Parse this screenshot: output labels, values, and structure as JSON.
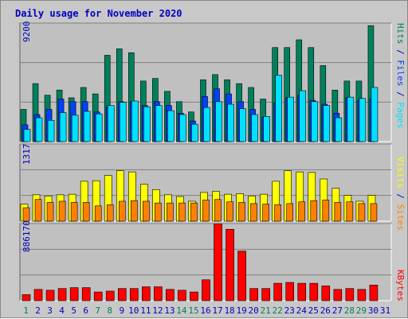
{
  "title": "Daily usage for November 2020",
  "colors": {
    "title": "#0000c0",
    "frame_bg": "#c8c8c8",
    "panel_bg": "#c0c0c0",
    "grid": "#808080",
    "hits": "#00805c",
    "files": "#0040ff",
    "pages": "#00e0ff",
    "visits": "#ffff00",
    "sites": "#ff8000",
    "kbytes": "#ff0000",
    "weekend_label": "#00805c",
    "weekday_label": "#0000c0"
  },
  "right_labels": {
    "pages": "Pages",
    "files": "Files",
    "hits": "Hits",
    "sep": " / ",
    "sites": "Sites",
    "visits": "Visits",
    "kbytes": "KBytes"
  },
  "chart_data": [
    {
      "type": "bar",
      "panel": "hits-files-pages",
      "ymax_label": "9200",
      "ylim": [
        0,
        9200
      ],
      "categories": [
        "1",
        "2",
        "3",
        "4",
        "5",
        "6",
        "7",
        "8",
        "9",
        "10",
        "11",
        "12",
        "13",
        "14",
        "15",
        "16",
        "17",
        "18",
        "19",
        "20",
        "21",
        "22",
        "23",
        "24",
        "25",
        "26",
        "27",
        "28",
        "29",
        "30",
        "31"
      ],
      "weekend_days": [
        "1",
        "7",
        "8",
        "14",
        "15",
        "21",
        "22",
        "28",
        "29"
      ],
      "series": [
        {
          "name": "Hits",
          "values": [
            2500,
            4500,
            3600,
            4000,
            3400,
            4200,
            3700,
            6700,
            7200,
            6900,
            4700,
            4900,
            3900,
            3100,
            2300,
            4800,
            5200,
            4800,
            4500,
            4200,
            3300,
            7300,
            7300,
            7900,
            7300,
            5900,
            4000,
            4700,
            4700,
            9000,
            null
          ]
        },
        {
          "name": "Files",
          "values": [
            1300,
            2100,
            2500,
            3300,
            3100,
            3100,
            2300,
            2700,
            3100,
            3100,
            2800,
            3100,
            2800,
            2200,
            1600,
            3500,
            4100,
            3700,
            3100,
            2500,
            1900,
            3000,
            3400,
            3600,
            3200,
            2900,
            2200,
            3400,
            3200,
            3300,
            null
          ]
        },
        {
          "name": "Pages",
          "values": [
            950,
            1850,
            1650,
            2250,
            2050,
            2350,
            2150,
            2800,
            3050,
            3150,
            2700,
            2800,
            2400,
            2100,
            1350,
            2650,
            3100,
            2900,
            2550,
            2100,
            1950,
            5150,
            3450,
            3950,
            3100,
            2800,
            1850,
            3450,
            3350,
            4200,
            null
          ]
        }
      ]
    },
    {
      "type": "bar",
      "panel": "visits-sites",
      "ymax_label": "1317",
      "ylim": [
        0,
        1317
      ],
      "categories": [
        "1",
        "2",
        "3",
        "4",
        "5",
        "6",
        "7",
        "8",
        "9",
        "10",
        "11",
        "12",
        "13",
        "14",
        "15",
        "16",
        "17",
        "18",
        "19",
        "20",
        "21",
        "22",
        "23",
        "24",
        "25",
        "26",
        "27",
        "28",
        "29",
        "30",
        "31"
      ],
      "series": [
        {
          "name": "Visits",
          "values": [
            290,
            450,
            430,
            450,
            460,
            680,
            690,
            780,
            860,
            840,
            630,
            540,
            450,
            420,
            340,
            490,
            510,
            460,
            470,
            430,
            460,
            680,
            860,
            840,
            830,
            720,
            560,
            440,
            340,
            440,
            null
          ]
        },
        {
          "name": "Sites",
          "values": [
            230,
            370,
            320,
            340,
            320,
            320,
            260,
            280,
            340,
            350,
            340,
            310,
            310,
            310,
            310,
            360,
            370,
            330,
            320,
            300,
            290,
            280,
            300,
            330,
            350,
            360,
            320,
            330,
            300,
            300,
            null
          ]
        }
      ]
    },
    {
      "type": "bar",
      "panel": "kbytes",
      "ymax_label": "886170",
      "ylim": [
        0,
        886170
      ],
      "categories": [
        "1",
        "2",
        "3",
        "4",
        "5",
        "6",
        "7",
        "8",
        "9",
        "10",
        "11",
        "12",
        "13",
        "14",
        "15",
        "16",
        "17",
        "18",
        "19",
        "20",
        "21",
        "22",
        "23",
        "24",
        "25",
        "26",
        "27",
        "28",
        "29",
        "30",
        "31"
      ],
      "series": [
        {
          "name": "KBytes",
          "values": [
            70000,
            130000,
            120000,
            140000,
            150000,
            150000,
            100000,
            110000,
            140000,
            140000,
            160000,
            160000,
            130000,
            120000,
            100000,
            240000,
            880000,
            820000,
            570000,
            140000,
            140000,
            200000,
            210000,
            200000,
            200000,
            170000,
            130000,
            140000,
            130000,
            180000,
            null
          ]
        }
      ]
    }
  ]
}
